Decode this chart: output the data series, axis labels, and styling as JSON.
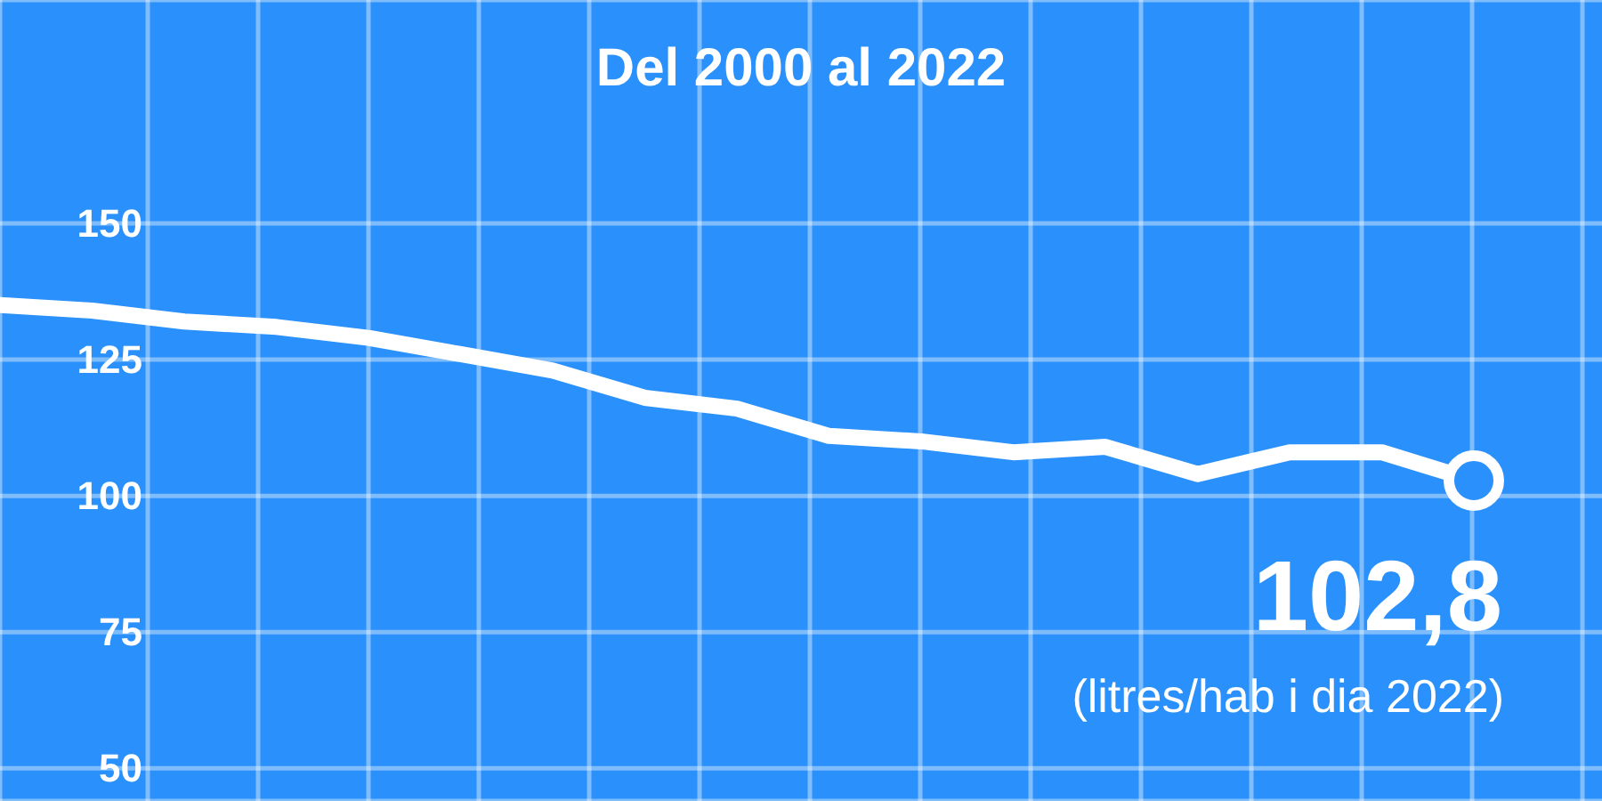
{
  "chart_data": {
    "type": "line",
    "title": "Del 2000 al 2022",
    "categories": [
      null,
      null,
      null,
      null,
      null,
      null,
      null,
      null,
      null,
      null,
      null,
      null,
      null,
      null,
      null,
      null,
      null
    ],
    "series": [
      {
        "color": "#ffffff",
        "values": [
          135,
          134,
          132,
          131,
          129,
          126,
          123,
          118,
          116,
          111,
          110,
          108,
          109,
          104,
          108,
          108,
          102.8
        ],
        "value_labels": [
          null,
          null,
          null,
          null,
          null,
          null,
          null,
          null,
          null,
          null,
          null,
          null,
          null,
          null,
          null,
          null,
          "102,8"
        ]
      }
    ],
    "ylim": [
      44,
      191
    ],
    "yticks": [
      50,
      75,
      100,
      125,
      150
    ],
    "grid": true,
    "tick_labels": "y",
    "line_style": "solid",
    "annotations": [
      "(litres/hab i dia 2022)"
    ]
  }
}
